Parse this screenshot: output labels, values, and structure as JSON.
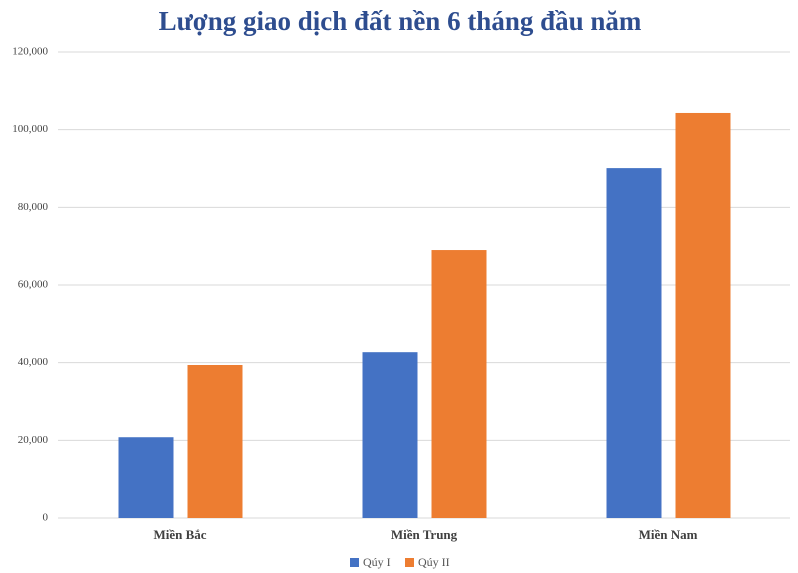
{
  "chart_data": {
    "type": "bar",
    "title": "Lượng giao dịch đất nền 6 tháng đầu năm",
    "categories": [
      "Miền Bắc",
      "Miền Trung",
      "Miền Nam"
    ],
    "series": [
      {
        "name": "Qúy I",
        "color": "#4472c4",
        "values": [
          20800,
          42700,
          90100
        ]
      },
      {
        "name": "Qúy II",
        "color": "#ed7d31",
        "values": [
          39400,
          69000,
          104300
        ]
      }
    ],
    "ylim": [
      0,
      120000
    ],
    "yticks": [
      0,
      {
        "value": 20000,
        "label": "20,000"
      },
      {
        "value": 40000,
        "label": "40,000"
      },
      {
        "value": 60000,
        "label": "60,000"
      },
      {
        "value": 80000,
        "label": "80,000"
      },
      {
        "value": 100000,
        "label": "100,000"
      },
      {
        "value": 120000,
        "label": "120,000"
      }
    ],
    "grid": true,
    "legend": "bottom"
  }
}
